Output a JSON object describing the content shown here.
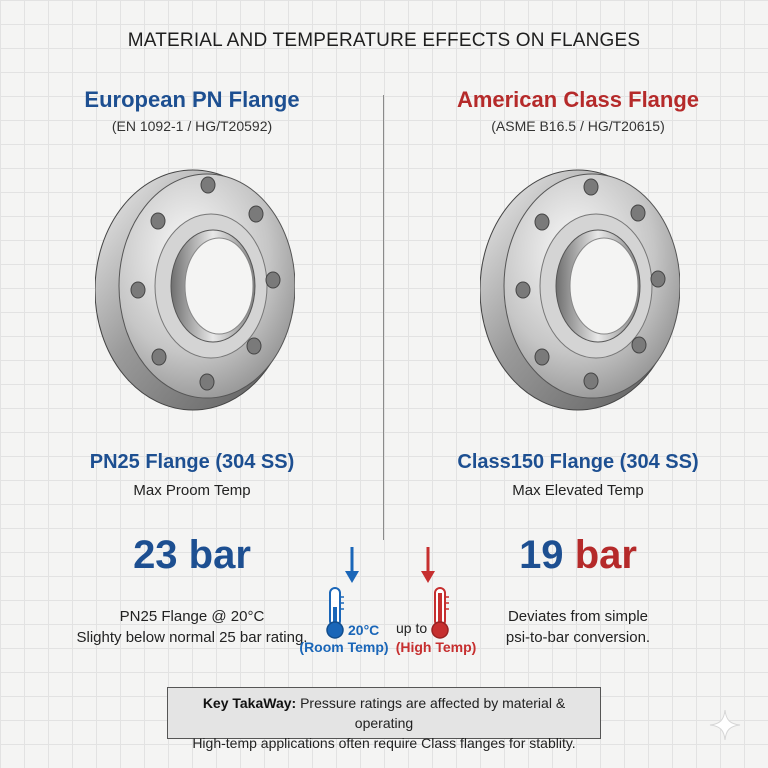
{
  "title": "MATERIAL AND TEMPERATURE EFFECTS ON FLANGES",
  "left": {
    "heading": "European PN Flange",
    "standard": "(EN 1092-1 / HG/T20592)",
    "model": "PN25 Flange (304 SS)",
    "temp_label": "Max Proom Temp",
    "value": "23 bar",
    "note_line1": "PN25 Flange @ 20°C",
    "note_line2": "Slighty below normal 25 bar rating.",
    "color": "#1d4f91"
  },
  "right": {
    "heading": "American Class Flange",
    "standard": "(ASME B16.5 / HG/T20615)",
    "model": "Class150 Flange (304 SS)",
    "temp_label": "Max Elevated Temp",
    "value_number": "19",
    "value_unit": "bar",
    "note_line1": "Deviates from simple",
    "note_line2": "psi-to-bar conversion.",
    "color": "#b52a2a"
  },
  "thermometers": {
    "cold": {
      "value": "20°C",
      "label": "(Room Temp)",
      "icon": "thermometer-cold-icon"
    },
    "hot": {
      "prefix": "up to",
      "label": "(High Temp)",
      "icon": "thermometer-hot-icon"
    }
  },
  "takeaway": {
    "label": "Key TakaWay:",
    "line1": "Pressure ratings are affected by material & operating",
    "line2": "High-temp applications often require Class flanges for stablity."
  }
}
